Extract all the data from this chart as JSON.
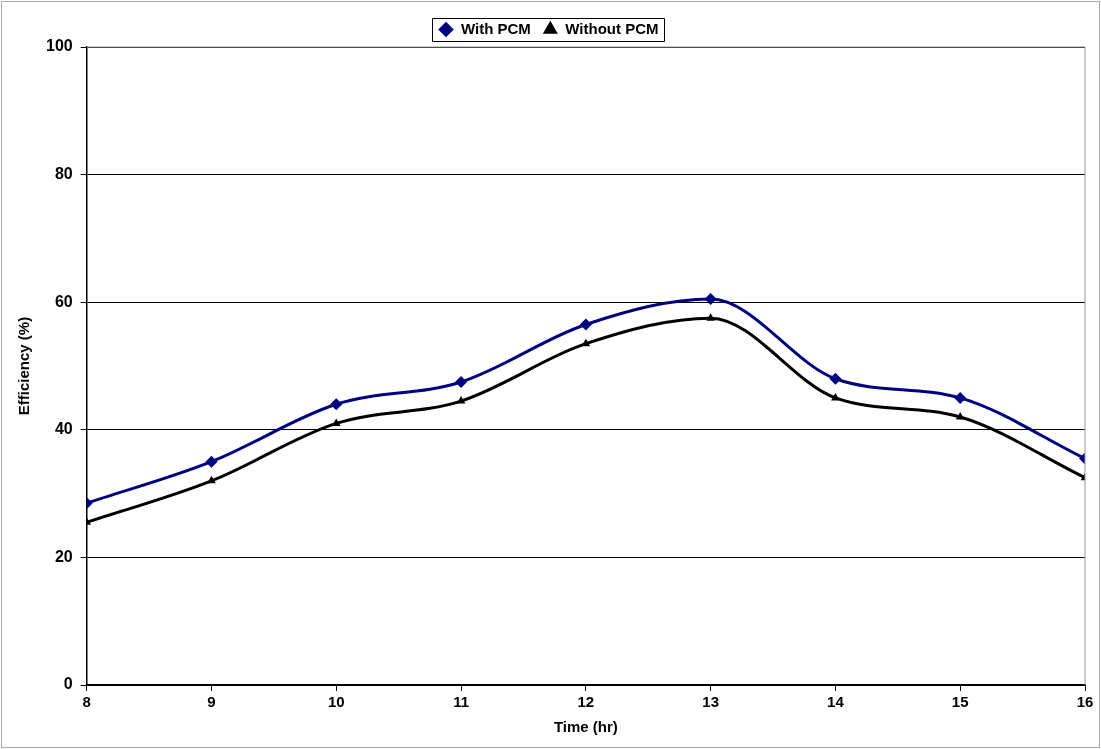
{
  "chart_data": {
    "type": "line",
    "xlabel": "Time (hr)",
    "ylabel": "Efficiency (%)",
    "x": [
      8,
      9,
      10,
      11,
      12,
      13,
      14,
      15,
      16
    ],
    "series": [
      {
        "name": "With PCM",
        "color": "#000080",
        "marker": "diamond",
        "values": [
          28.5,
          35,
          44,
          47.5,
          56.5,
          60.5,
          48,
          45,
          35.5
        ]
      },
      {
        "name": "Without PCM",
        "color": "#000000",
        "marker": "triangle",
        "values": [
          25.5,
          32,
          41,
          44.5,
          53.5,
          57.5,
          45,
          42,
          32.5
        ]
      }
    ],
    "xlim": [
      8,
      16
    ],
    "xticks": [
      8,
      9,
      10,
      11,
      12,
      13,
      14,
      15,
      16
    ],
    "ylim": [
      0,
      100
    ],
    "yticks": [
      0,
      20,
      40,
      60,
      80,
      100
    ],
    "grid": "y",
    "legend": "top"
  }
}
